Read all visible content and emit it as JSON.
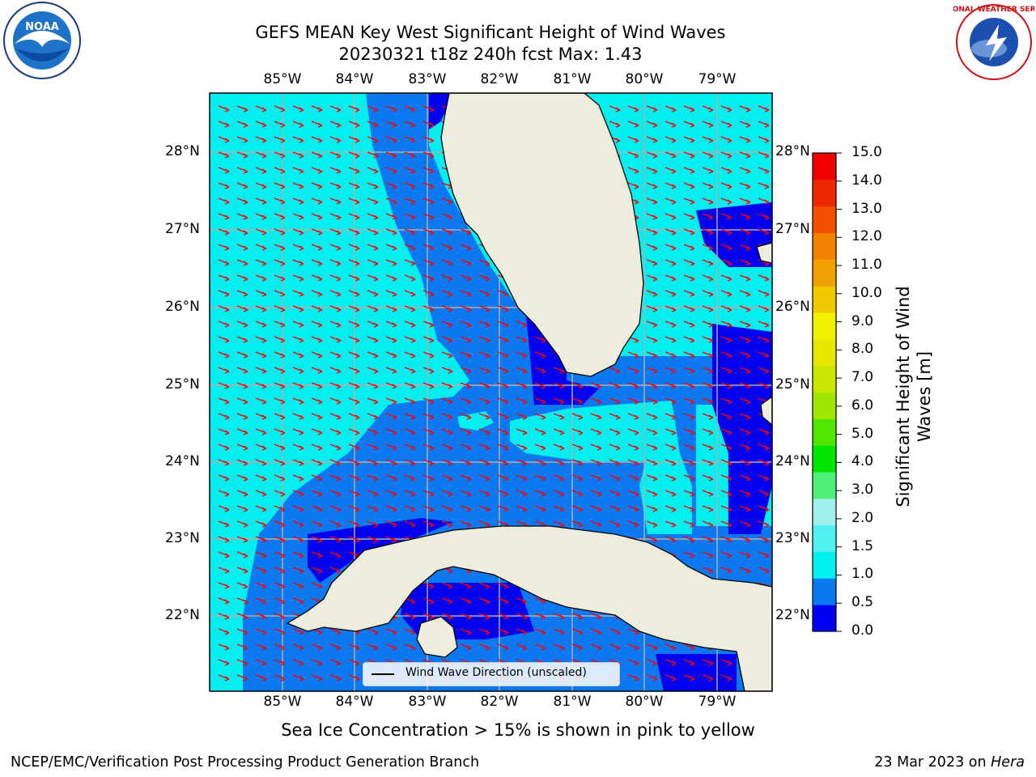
{
  "title": {
    "line1": "GEFS MEAN Key West Significant Height of Wind Waves",
    "line2": "20230321 t18z 240h fcst   Max: 1.43"
  },
  "logos": {
    "left": "NOAA",
    "right": "NATIONAL WEATHER SERVICE"
  },
  "axes": {
    "lon_top": [
      "85°W",
      "84°W",
      "83°W",
      "82°W",
      "81°W",
      "80°W",
      "79°W"
    ],
    "lon_bottom": [
      "85°W",
      "84°W",
      "83°W",
      "82°W",
      "81°W",
      "80°W",
      "79°W"
    ],
    "lat_left": [
      "28°N",
      "27°N",
      "26°N",
      "25°N",
      "24°N",
      "23°N",
      "22°N"
    ],
    "lat_right": [
      "28°N",
      "27°N",
      "26°N",
      "25°N",
      "24°N",
      "23°N",
      "22°N"
    ]
  },
  "legend": {
    "label": "Wind Wave Direction (unscaled)"
  },
  "colorbar": {
    "label_line1": "Significant Height of Wind",
    "label_line2": "Waves [m]",
    "ticks": [
      "15.0",
      "14.0",
      "13.0",
      "12.0",
      "11.0",
      "10.0",
      "9.0",
      "8.0",
      "7.0",
      "6.0",
      "5.0",
      "4.0",
      "3.0",
      "2.0",
      "1.5",
      "1.0",
      "0.5",
      "0.0"
    ],
    "colors": [
      "#0000f0",
      "#0a78f0",
      "#00f0f0",
      "#50f0f0",
      "#a0f0f0",
      "#50f078",
      "#00e600",
      "#50e600",
      "#a0e600",
      "#c8e600",
      "#e6e600",
      "#f0f000",
      "#f0c800",
      "#f0a000",
      "#f08200",
      "#f05000",
      "#f02800",
      "#f00000"
    ]
  },
  "note": "Sea Ice Concentration > 15% is shown in pink to yellow",
  "footer": {
    "left": "NCEP/EMC/Verification Post Processing Product Generation Branch",
    "right_prefix": "23 Mar 2023 on ",
    "right_host": "Hera"
  },
  "map_colors": {
    "land": "#eeecdc",
    "ocean_cyan": "#00f0f0",
    "ocean_mid": "#0a78f0",
    "ocean_deep": "#0000f0",
    "arrow": "#ff0000",
    "grid": "#b0b0b0"
  }
}
